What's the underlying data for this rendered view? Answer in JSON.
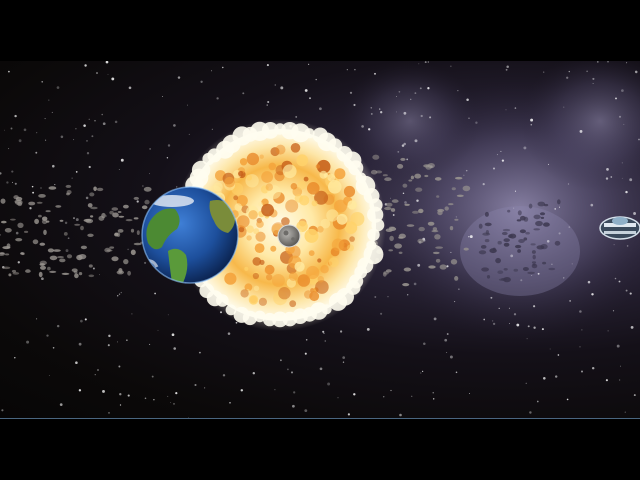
{
  "scene": {
    "objects": [
      "starfield",
      "nebula",
      "asteroid-field",
      "exploding-sun",
      "earth-planet",
      "moon",
      "spaceship"
    ],
    "colors": {
      "space": "#0b0909",
      "nebula": "#6e6790",
      "explosion_core": "#fff6d8",
      "explosion_mid": "#f4a23a",
      "explosion_edge": "#c8621b",
      "earth_ocean": "#1d4f9c",
      "earth_land": "#4c8a33",
      "moon": "#8c8a87"
    }
  }
}
